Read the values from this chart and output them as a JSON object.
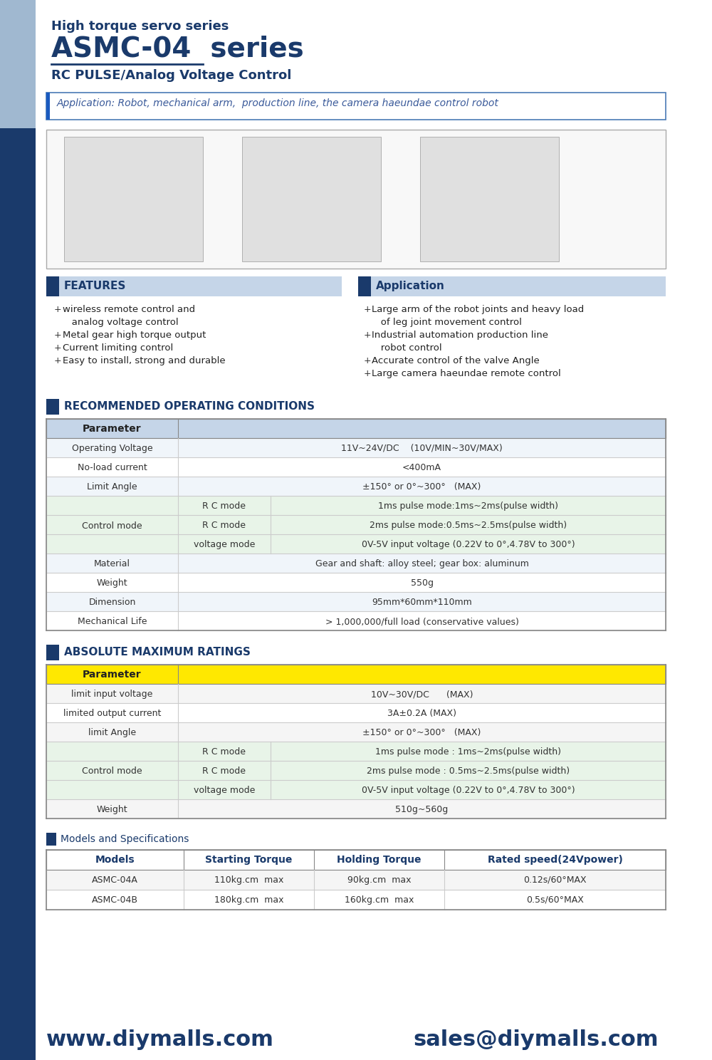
{
  "title_line1": "High torque servo series",
  "title_line2": "ASMC-04  series",
  "title_line3": "RC PULSE/Analog Voltage Control",
  "application_text": "Application: Robot, mechanical arm,  production line, the camera haeundae control robot",
  "features_title": "FEATURES",
  "features_items": [
    "wireless remote control and",
    "  analog voltage control",
    "Metal gear high torque output",
    "Current limiting control",
    "Easy to install, strong and durable"
  ],
  "application_title": "Application",
  "application_items": [
    "Large arm of the robot joints and heavy load",
    "  of leg joint movement control",
    "Industrial automation production line",
    "  robot control",
    "Accurate control of the valve Angle",
    "Large camera haeundae remote control"
  ],
  "rec_title": "RECOMMENDED OPERATING CONDITIONS",
  "abs_title": "ABSOLUTE MAXIMUM RATINGS",
  "models_title": "Models and Specifications",
  "models_headers": [
    "Models",
    "Starting Torque",
    "Holding Torque",
    "Rated speed(24Vpower)"
  ],
  "models_rows": [
    [
      "ASMC-04A",
      "110kg.cm  max",
      "90kg.cm  max",
      "0.12s/60°MAX"
    ],
    [
      "ASMC-04B",
      "180kg.cm  max",
      "160kg.cm  max",
      "0.5s/60°MAX"
    ]
  ],
  "footer_left": "www.diymalls.com",
  "footer_right": "sales@diymalls.com",
  "color_dark_blue": "#1a3a6b",
  "color_mid_blue": "#3a6aab",
  "color_light_blue": "#b8cce4",
  "color_header_bg": "#c5d5e8",
  "color_yellow": "#FFE800",
  "color_green_light": "#e8f4e8",
  "color_sidebar_top": "#a0b8d0",
  "color_sidebar_bottom": "#1a3a6b",
  "page_bg": "#ffffff"
}
